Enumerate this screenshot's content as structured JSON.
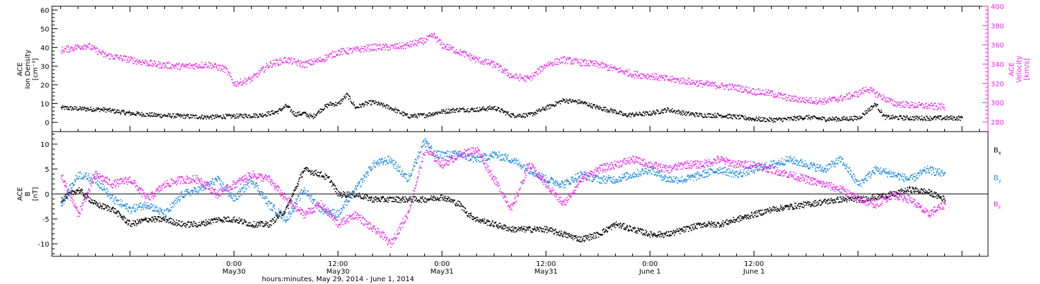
{
  "chart_data": [
    {
      "type": "scatter",
      "panel": "top",
      "ylabel_left": [
        "ACE",
        "Ion Density",
        "[cm⁻³]"
      ],
      "ylabel_right": [
        "ACE",
        "Velocity",
        "[km/s]"
      ],
      "ylim_left": [
        -5,
        62
      ],
      "ylim_right": [
        270,
        400
      ],
      "yticks_left": [
        0,
        10,
        20,
        30,
        40,
        50,
        60
      ],
      "yticks_right": [
        280,
        300,
        320,
        340,
        360,
        380,
        400
      ],
      "xlim_hours": [
        -21,
        87
      ],
      "series": [
        {
          "axis": "left",
          "color": "#000000",
          "x": [
            -20,
            -18,
            -15,
            -12,
            -9,
            -6,
            -3,
            0,
            3,
            5,
            6,
            7,
            8,
            9,
            10,
            11,
            12,
            13,
            14,
            15,
            16,
            18,
            20,
            22,
            24,
            26,
            28,
            30,
            32,
            34,
            36,
            38,
            40,
            42,
            44,
            45,
            48,
            50,
            52,
            54,
            56,
            58,
            60,
            62,
            64,
            66,
            68,
            70,
            72,
            74,
            75,
            78,
            80,
            81,
            84
          ],
          "y": [
            8,
            7.5,
            7,
            5,
            4,
            3.5,
            3,
            3.5,
            4,
            6,
            9,
            4.5,
            5,
            3,
            7,
            10,
            10,
            15,
            8,
            10,
            11,
            8,
            3.5,
            4,
            6,
            7,
            7,
            8,
            4,
            4,
            8,
            12,
            11,
            8,
            6,
            4,
            5,
            7,
            5,
            4,
            4,
            3,
            2,
            1.5,
            2,
            3,
            2,
            2,
            2.5,
            10,
            3,
            2.5,
            2.5,
            2.5,
            2.5
          ]
        },
        {
          "axis": "right",
          "color": "#ee22ee",
          "x": [
            -20,
            -17,
            -15,
            -12,
            -9,
            -6,
            -3,
            -1,
            0,
            2,
            4,
            6,
            8,
            10,
            12,
            14,
            16,
            18,
            20,
            22,
            23,
            24,
            26,
            28,
            30,
            32,
            34,
            36,
            38,
            40,
            42,
            44,
            46,
            48,
            50,
            52,
            54,
            56,
            58,
            60,
            62,
            64,
            66,
            68,
            70,
            72,
            73,
            74,
            76,
            78,
            80,
            82
          ],
          "y": [
            355,
            360,
            350,
            345,
            340,
            338,
            340,
            335,
            320,
            325,
            340,
            345,
            340,
            345,
            353,
            355,
            358,
            358,
            360,
            365,
            370,
            360,
            353,
            345,
            340,
            328,
            325,
            340,
            345,
            342,
            340,
            335,
            330,
            328,
            325,
            323,
            320,
            318,
            316,
            312,
            310,
            305,
            303,
            302,
            305,
            310,
            315,
            310,
            300,
            298,
            297,
            296
          ]
        }
      ]
    },
    {
      "type": "scatter",
      "panel": "bottom",
      "ylabel": [
        "ACE",
        "B",
        "[nT]"
      ],
      "ylim": [
        -12.5,
        12.5
      ],
      "yticks": [
        -10,
        -5,
        0,
        5,
        10
      ],
      "xlim_hours": [
        -21,
        87
      ],
      "legend": [
        "Bx",
        "By",
        "Bz"
      ],
      "legend_placement": "right",
      "series": [
        {
          "name": "Bx",
          "color": "#000000",
          "x": [
            -20,
            -18,
            -16,
            -14,
            -12,
            -10,
            -8,
            -6,
            -4,
            -2,
            0,
            2,
            4,
            6,
            7,
            8,
            10,
            11,
            12,
            14,
            16,
            18,
            20,
            22,
            24,
            26,
            27,
            28,
            30,
            32,
            34,
            36,
            38,
            40,
            42,
            44,
            46,
            48,
            50,
            52,
            54,
            56,
            58,
            60,
            62,
            64,
            66,
            68,
            70,
            72,
            74,
            76,
            78,
            80,
            82
          ],
          "y": [
            -1,
            1,
            -2,
            -3,
            -6,
            -5,
            -5,
            -6,
            -6,
            -5,
            -5,
            -6,
            -6,
            -3,
            1,
            5,
            4,
            3,
            0,
            0,
            -1,
            -1,
            -1,
            -1,
            -0.5,
            -2,
            -4,
            -5,
            -6,
            -7,
            -7,
            -7,
            -8,
            -9,
            -8,
            -6,
            -7,
            -8,
            -8,
            -7,
            -6,
            -6,
            -5,
            -4,
            -3,
            -2.5,
            -2,
            -1.5,
            -1,
            -1,
            -0.5,
            0,
            1,
            0.5,
            -1
          ]
        },
        {
          "name": "By",
          "color": "#1a88e0",
          "x": [
            -20,
            -18,
            -16,
            -14,
            -12,
            -10,
            -8,
            -6,
            -4,
            -2,
            0,
            2,
            4,
            6,
            8,
            10,
            12,
            14,
            16,
            18,
            20,
            22,
            23,
            24,
            26,
            28,
            30,
            32,
            34,
            36,
            38,
            40,
            42,
            44,
            46,
            48,
            50,
            52,
            54,
            56,
            58,
            60,
            62,
            64,
            66,
            68,
            70,
            72,
            74,
            76,
            78,
            80,
            82
          ],
          "y": [
            -2,
            4,
            3,
            -1,
            -3,
            -2,
            -4,
            0,
            1,
            3,
            -1,
            3,
            -2,
            -5,
            1,
            -3,
            -4,
            1,
            6,
            7,
            3,
            11,
            8,
            8,
            8,
            7,
            8,
            7,
            5,
            3,
            2,
            4,
            3,
            3,
            4,
            5,
            3,
            3,
            4,
            5,
            4,
            5,
            6,
            7,
            6,
            5,
            7,
            2,
            5,
            4,
            3,
            5,
            4
          ]
        },
        {
          "name": "Bz",
          "color": "#ee22ee",
          "x": [
            -20,
            -18,
            -16,
            -14,
            -12,
            -10,
            -8,
            -6,
            -4,
            -2,
            0,
            2,
            4,
            6,
            8,
            10,
            12,
            14,
            16,
            17,
            18,
            20,
            22,
            24,
            26,
            28,
            30,
            32,
            34,
            36,
            38,
            40,
            42,
            44,
            46,
            48,
            50,
            52,
            54,
            56,
            58,
            60,
            62,
            64,
            66,
            68,
            70,
            72,
            74,
            76,
            78,
            80,
            82
          ],
          "y": [
            4,
            -4,
            4,
            2,
            3,
            -1,
            2,
            3,
            3,
            0,
            2,
            4,
            3,
            -1,
            -4,
            -2,
            -6,
            -4,
            -7,
            -8,
            -10,
            -4,
            9,
            6,
            8,
            9,
            3,
            -3,
            6,
            2,
            -2,
            3,
            5,
            6,
            7,
            6,
            5,
            6,
            6,
            7,
            6,
            6,
            5,
            4,
            3,
            2,
            1,
            -1,
            -2,
            0,
            -1,
            -4,
            -2
          ]
        }
      ]
    }
  ],
  "x_axis": {
    "tick_labels": [
      {
        "time": "0:00",
        "date": "May30"
      },
      {
        "time": "12:00",
        "date": "May30"
      },
      {
        "time": "0:00",
        "date": "May31"
      },
      {
        "time": "12:00",
        "date": "May31"
      },
      {
        "time": "0:00",
        "date": "June 1"
      },
      {
        "time": "12:00",
        "date": "June 1"
      }
    ],
    "title": "hours:minutes, May 29, 2014 - June  1, 2014"
  },
  "legend_labels": {
    "bx": "B",
    "by": "B",
    "bz": "B",
    "bx_sub": "x",
    "by_sub": "y",
    "bz_sub": "z"
  },
  "colors": {
    "density": "#000000",
    "velocity": "#ee22ee",
    "bx": "#000000",
    "by": "#1a88e0",
    "bz": "#ee22ee"
  }
}
